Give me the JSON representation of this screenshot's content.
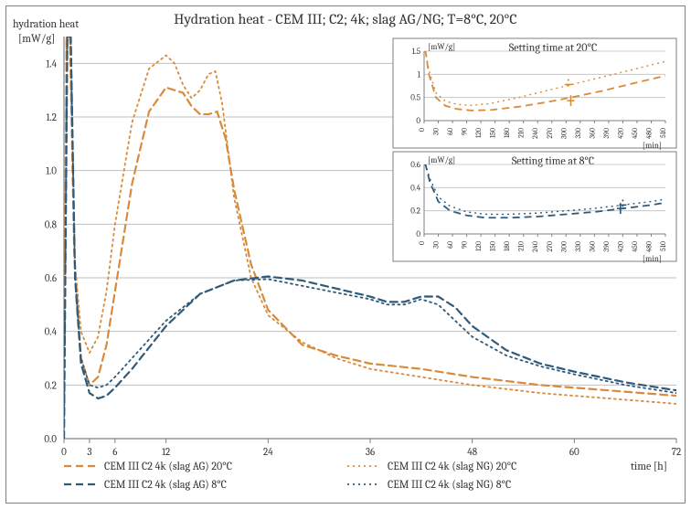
{
  "title": "Hydration heat - CEM III; C2; 4k; slag AG/NG; T=8°C, 20°C",
  "title_fontsize": 16,
  "axis_label_fontsize": 12,
  "tick_fontsize": 11,
  "ylabel_line1": "hydration heat",
  "ylabel_line2": "[mW/g]",
  "xlabel": "time [h]",
  "colors": {
    "orange": "#d98a3a",
    "blue": "#2f5a7a",
    "grid": "#bfbfbf",
    "border": "#7f7f7f",
    "text": "#333333",
    "bg": "#ffffff",
    "inset_bg": "#ffffff"
  },
  "main": {
    "xlim": [
      0,
      72
    ],
    "ylim": [
      0,
      1.5
    ],
    "xticks": [
      0,
      3,
      6,
      12,
      24,
      36,
      48,
      60,
      72
    ],
    "yticks": [
      0.0,
      0.2,
      0.4,
      0.6,
      0.8,
      1.0,
      1.2,
      1.4
    ],
    "ytick_labels": [
      "0.0",
      "0.2",
      "0.4",
      "0.6",
      "0.8",
      "1.0",
      "1.2",
      "1.4"
    ],
    "line_width_main": 2.2,
    "line_width_dot": 1.8,
    "dash_main": "8 5",
    "dash_dot": "2 4",
    "series": {
      "ag20": {
        "color": "orange",
        "style": "dash",
        "pts": [
          [
            0,
            0.0
          ],
          [
            0.3,
            1.5
          ],
          [
            0.7,
            1.5
          ],
          [
            1.2,
            0.7
          ],
          [
            2,
            0.3
          ],
          [
            3,
            0.2
          ],
          [
            4,
            0.23
          ],
          [
            5,
            0.35
          ],
          [
            6,
            0.55
          ],
          [
            8,
            0.95
          ],
          [
            10,
            1.22
          ],
          [
            12,
            1.31
          ],
          [
            14,
            1.29
          ],
          [
            15,
            1.24
          ],
          [
            16,
            1.21
          ],
          [
            17,
            1.21
          ],
          [
            18,
            1.22
          ],
          [
            19,
            1.12
          ],
          [
            20,
            0.93
          ],
          [
            22,
            0.65
          ],
          [
            24,
            0.48
          ],
          [
            28,
            0.35
          ],
          [
            32,
            0.31
          ],
          [
            36,
            0.28
          ],
          [
            42,
            0.26
          ],
          [
            48,
            0.23
          ],
          [
            56,
            0.2
          ],
          [
            64,
            0.18
          ],
          [
            72,
            0.16
          ]
        ]
      },
      "ng20": {
        "color": "orange",
        "style": "dot",
        "pts": [
          [
            0,
            0.0
          ],
          [
            0.3,
            1.5
          ],
          [
            0.7,
            1.5
          ],
          [
            1.3,
            0.65
          ],
          [
            2,
            0.4
          ],
          [
            3,
            0.32
          ],
          [
            4,
            0.38
          ],
          [
            5,
            0.55
          ],
          [
            6,
            0.8
          ],
          [
            8,
            1.18
          ],
          [
            10,
            1.38
          ],
          [
            12,
            1.43
          ],
          [
            13,
            1.4
          ],
          [
            14,
            1.32
          ],
          [
            15,
            1.27
          ],
          [
            16,
            1.3
          ],
          [
            17,
            1.36
          ],
          [
            17.8,
            1.37
          ],
          [
            18.6,
            1.25
          ],
          [
            20,
            0.9
          ],
          [
            22,
            0.6
          ],
          [
            24,
            0.46
          ],
          [
            28,
            0.36
          ],
          [
            32,
            0.3
          ],
          [
            36,
            0.26
          ],
          [
            42,
            0.23
          ],
          [
            48,
            0.2
          ],
          [
            56,
            0.17
          ],
          [
            64,
            0.15
          ],
          [
            72,
            0.13
          ]
        ]
      },
      "ag8": {
        "color": "blue",
        "style": "dash",
        "pts": [
          [
            0,
            0.0
          ],
          [
            0.4,
            1.5
          ],
          [
            0.8,
            1.5
          ],
          [
            1.3,
            0.6
          ],
          [
            2,
            0.28
          ],
          [
            3,
            0.17
          ],
          [
            4,
            0.15
          ],
          [
            5,
            0.16
          ],
          [
            6,
            0.19
          ],
          [
            8,
            0.26
          ],
          [
            10,
            0.34
          ],
          [
            12,
            0.42
          ],
          [
            16,
            0.54
          ],
          [
            20,
            0.59
          ],
          [
            24,
            0.605
          ],
          [
            28,
            0.59
          ],
          [
            32,
            0.56
          ],
          [
            36,
            0.53
          ],
          [
            38,
            0.51
          ],
          [
            40,
            0.51
          ],
          [
            42,
            0.53
          ],
          [
            44,
            0.53
          ],
          [
            46,
            0.49
          ],
          [
            48,
            0.42
          ],
          [
            52,
            0.33
          ],
          [
            56,
            0.28
          ],
          [
            60,
            0.25
          ],
          [
            66,
            0.21
          ],
          [
            72,
            0.18
          ]
        ]
      },
      "ng8": {
        "color": "blue",
        "style": "dot",
        "pts": [
          [
            0,
            0.0
          ],
          [
            0.4,
            1.5
          ],
          [
            0.8,
            1.5
          ],
          [
            1.3,
            0.6
          ],
          [
            2,
            0.3
          ],
          [
            3,
            0.2
          ],
          [
            4,
            0.19
          ],
          [
            5,
            0.2
          ],
          [
            6,
            0.23
          ],
          [
            8,
            0.3
          ],
          [
            10,
            0.37
          ],
          [
            12,
            0.44
          ],
          [
            16,
            0.54
          ],
          [
            20,
            0.59
          ],
          [
            24,
            0.595
          ],
          [
            28,
            0.57
          ],
          [
            32,
            0.545
          ],
          [
            36,
            0.52
          ],
          [
            38,
            0.5
          ],
          [
            40,
            0.5
          ],
          [
            42,
            0.52
          ],
          [
            44,
            0.5
          ],
          [
            46,
            0.44
          ],
          [
            48,
            0.38
          ],
          [
            52,
            0.31
          ],
          [
            56,
            0.27
          ],
          [
            60,
            0.24
          ],
          [
            66,
            0.2
          ],
          [
            72,
            0.17
          ]
        ]
      }
    }
  },
  "inset20": {
    "title": "Setting time at 20°C",
    "xlim": [
      0,
      510
    ],
    "ylim": [
      0,
      1.5
    ],
    "xticks": [
      0,
      30,
      60,
      90,
      120,
      150,
      180,
      210,
      240,
      270,
      300,
      330,
      360,
      390,
      420,
      450,
      480,
      510
    ],
    "yticks": [
      0,
      0.5,
      1.0,
      1.5
    ],
    "ylabel": "[mW/g]",
    "xlabel": "[min]",
    "series": {
      "ag20": {
        "color": "orange",
        "style": "dash",
        "pts": [
          [
            0,
            1.5
          ],
          [
            3,
            1.5
          ],
          [
            10,
            1.0
          ],
          [
            25,
            0.5
          ],
          [
            45,
            0.32
          ],
          [
            70,
            0.25
          ],
          [
            100,
            0.22
          ],
          [
            140,
            0.23
          ],
          [
            200,
            0.3
          ],
          [
            260,
            0.4
          ],
          [
            320,
            0.52
          ],
          [
            380,
            0.65
          ],
          [
            440,
            0.8
          ],
          [
            510,
            0.97
          ]
        ]
      },
      "ng20": {
        "color": "orange",
        "style": "dot",
        "pts": [
          [
            0,
            1.5
          ],
          [
            3,
            1.5
          ],
          [
            10,
            1.1
          ],
          [
            25,
            0.6
          ],
          [
            45,
            0.42
          ],
          [
            70,
            0.35
          ],
          [
            100,
            0.33
          ],
          [
            140,
            0.37
          ],
          [
            200,
            0.5
          ],
          [
            260,
            0.65
          ],
          [
            320,
            0.8
          ],
          [
            380,
            0.95
          ],
          [
            440,
            1.1
          ],
          [
            510,
            1.28
          ]
        ]
      }
    },
    "markers": [
      {
        "x": 310,
        "y": 0.43,
        "color": "orange"
      },
      {
        "x": 305,
        "y": 0.78,
        "color": "orange",
        "style": "dot"
      }
    ]
  },
  "inset8": {
    "title": "Setting time at 8°C",
    "xlim": [
      0,
      510
    ],
    "ylim": [
      0,
      0.6
    ],
    "xticks": [
      0,
      30,
      60,
      90,
      120,
      150,
      180,
      210,
      240,
      270,
      300,
      330,
      360,
      390,
      420,
      450,
      480,
      510
    ],
    "yticks": [
      0,
      0.2,
      0.4,
      0.6
    ],
    "ylabel": "[mW/g]",
    "xlabel": "[min]",
    "series": {
      "ag8": {
        "color": "blue",
        "style": "dash",
        "pts": [
          [
            0,
            0.6
          ],
          [
            3,
            0.6
          ],
          [
            12,
            0.45
          ],
          [
            30,
            0.28
          ],
          [
            55,
            0.2
          ],
          [
            90,
            0.16
          ],
          [
            130,
            0.14
          ],
          [
            180,
            0.14
          ],
          [
            240,
            0.15
          ],
          [
            300,
            0.17
          ],
          [
            360,
            0.19
          ],
          [
            420,
            0.22
          ],
          [
            480,
            0.25
          ],
          [
            510,
            0.27
          ]
        ]
      },
      "ng8": {
        "color": "blue",
        "style": "dot",
        "pts": [
          [
            0,
            0.6
          ],
          [
            3,
            0.6
          ],
          [
            12,
            0.48
          ],
          [
            30,
            0.32
          ],
          [
            55,
            0.24
          ],
          [
            90,
            0.19
          ],
          [
            130,
            0.17
          ],
          [
            180,
            0.17
          ],
          [
            240,
            0.18
          ],
          [
            300,
            0.2
          ],
          [
            360,
            0.22
          ],
          [
            420,
            0.25
          ],
          [
            480,
            0.28
          ],
          [
            510,
            0.3
          ]
        ]
      }
    },
    "markers": [
      {
        "x": 415,
        "y": 0.22,
        "color": "blue"
      },
      {
        "x": 420,
        "y": 0.25,
        "color": "blue",
        "style": "dot"
      }
    ]
  },
  "legend": [
    {
      "label": "CEM III C2 4k (slag AG) 20°C",
      "color": "orange",
      "style": "dash"
    },
    {
      "label": "CEM III C2 4k (slag NG) 20°C",
      "color": "orange",
      "style": "dot"
    },
    {
      "label": "CEM III C2 4k (slag AG) 8°C",
      "color": "blue",
      "style": "dash"
    },
    {
      "label": "CEM III C2 4k (slag NG) 8°C",
      "color": "blue",
      "style": "dot"
    }
  ],
  "legend_fontsize": 12
}
